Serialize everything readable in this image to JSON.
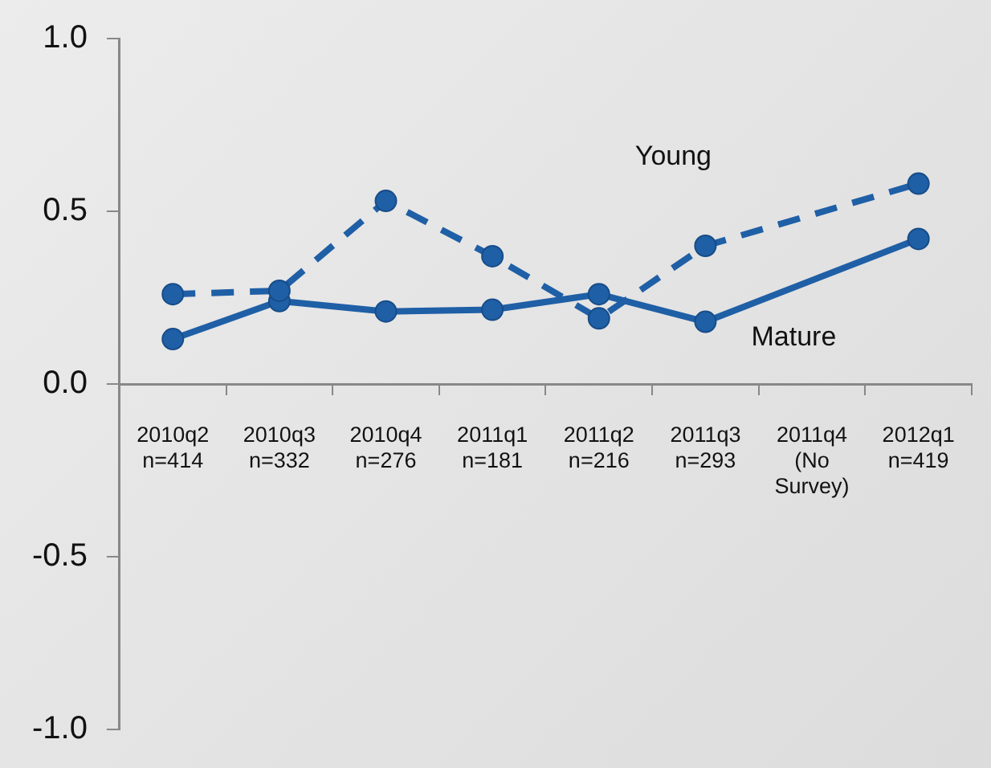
{
  "chart_data": {
    "type": "line",
    "categories": [
      "2010q2\nn=414",
      "2010q3\nn=332",
      "2010q4\nn=276",
      "2011q1\nn=181",
      "2011q2\nn=216",
      "2011q3\nn=293",
      "2011q4\n(No\nSurvey)",
      "2012q1\nn=419"
    ],
    "series": [
      {
        "name": "Young",
        "color": "#1f5fa6",
        "line_style": "dashed",
        "values": [
          0.26,
          0.27,
          0.53,
          0.37,
          0.19,
          0.4,
          null,
          0.58
        ]
      },
      {
        "name": "Mature",
        "color": "#1f5fa6",
        "line_style": "solid",
        "values": [
          0.13,
          0.24,
          0.21,
          0.215,
          0.26,
          0.18,
          null,
          0.42
        ]
      }
    ],
    "ylim": [
      -1,
      1
    ],
    "yticks": [
      {
        "value": -1,
        "label": "-1.0"
      },
      {
        "value": -0.5,
        "label": "-0.5"
      },
      {
        "value": 0,
        "label": "0.0"
      },
      {
        "value": 0.5,
        "label": "0.5"
      },
      {
        "value": 1,
        "label": "1.0"
      }
    ],
    "grid": false,
    "legend": false,
    "marker": "circle"
  }
}
